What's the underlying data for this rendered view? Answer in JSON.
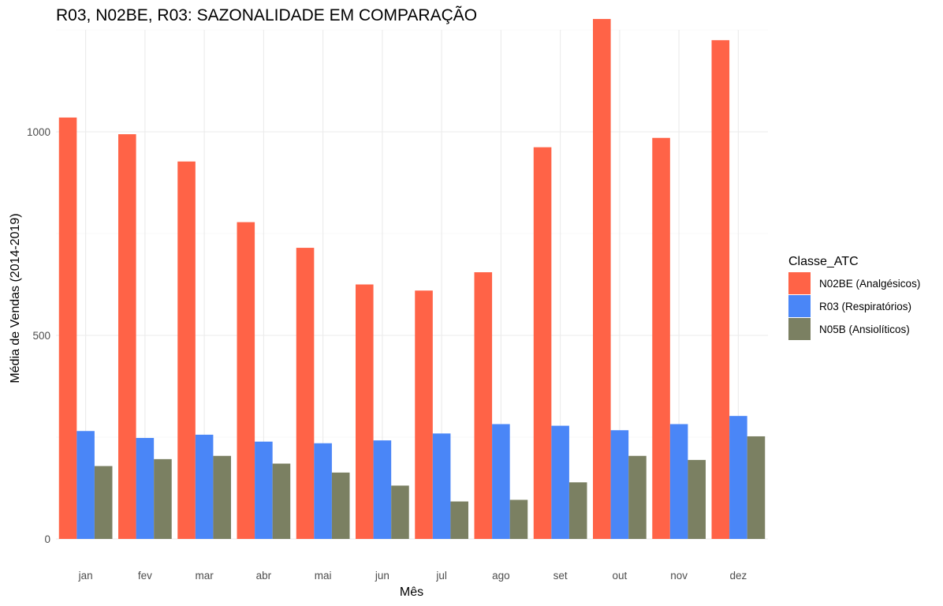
{
  "chart_data": {
    "type": "bar",
    "title": "R03, N02BE, R03: SAZONALIDADE EM COMPARAÇÃO",
    "xlabel": "Mês",
    "ylabel": "Média de Vendas (2014-2019)",
    "categories": [
      "jan",
      "fev",
      "mar",
      "abr",
      "mai",
      "jun",
      "jul",
      "ago",
      "set",
      "out",
      "nov",
      "dez"
    ],
    "ylim": [
      0,
      1250
    ],
    "yticks": [
      0,
      500,
      1000
    ],
    "ytick_labels": [
      "0",
      "500",
      "1000"
    ],
    "grid": true,
    "legend": {
      "title": "Classe_ATC",
      "position": "right"
    },
    "series": [
      {
        "name": "N02BE (Analgésicos)",
        "color": "#FF6347",
        "values": [
          1035,
          994,
          927,
          778,
          715,
          625,
          610,
          655,
          962,
          1277,
          985,
          1225
        ]
      },
      {
        "name": "R03 (Respiratórios)",
        "color": "#4A86F7",
        "values": [
          265,
          248,
          256,
          239,
          235,
          242,
          259,
          282,
          278,
          267,
          282,
          302
        ]
      },
      {
        "name": "N05B (Ansiolíticos)",
        "color": "#7B8062",
        "values": [
          179,
          196,
          204,
          185,
          163,
          131,
          92,
          96,
          139,
          204,
          194,
          252
        ]
      }
    ]
  }
}
